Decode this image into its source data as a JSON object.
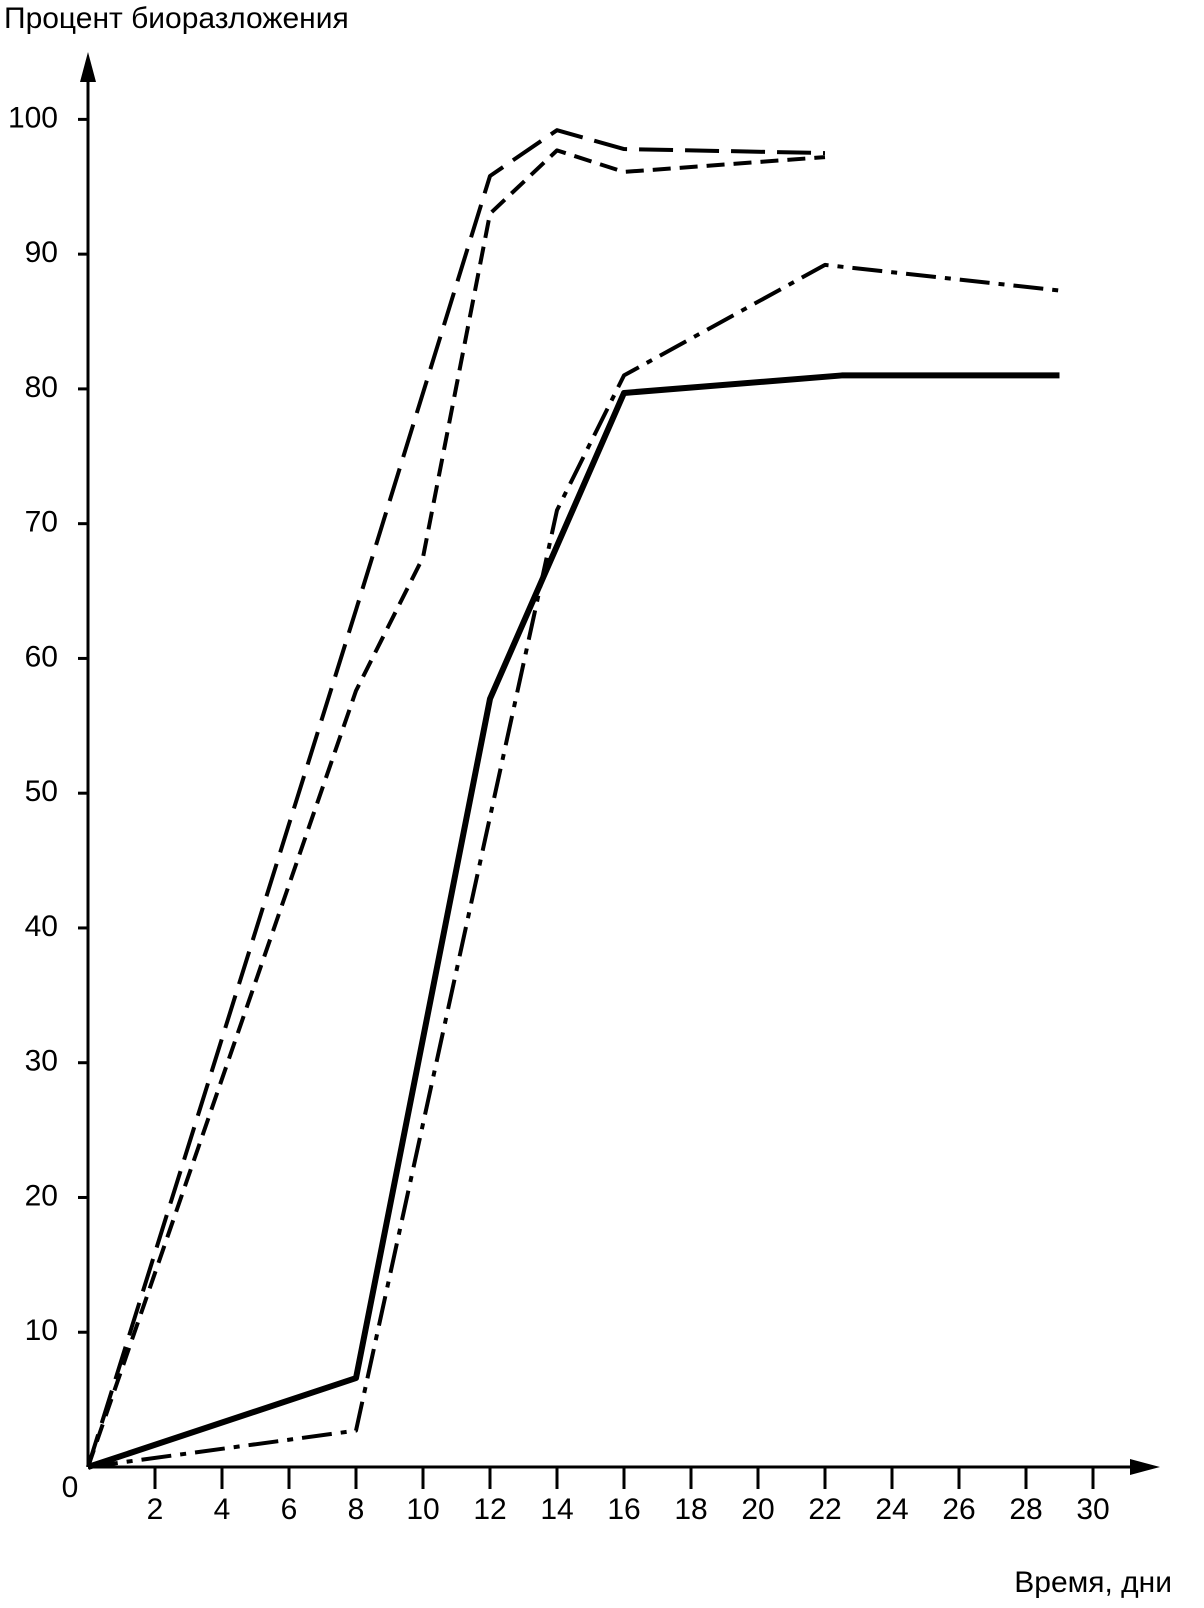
{
  "chart_data": {
    "type": "line",
    "ylabel": "Процент биоразложения",
    "xlabel": "Время, дни",
    "xlim": [
      0,
      32
    ],
    "ylim": [
      0,
      105
    ],
    "xticks": [
      2,
      4,
      6,
      8,
      10,
      12,
      14,
      16,
      18,
      20,
      22,
      24,
      26,
      28,
      30
    ],
    "yticks": [
      0,
      10,
      20,
      30,
      40,
      50,
      60,
      70,
      80,
      90,
      100
    ],
    "series": [
      {
        "color": "#000000",
        "line_style": "long-dash",
        "x": [
          0,
          8,
          12,
          14,
          16,
          22
        ],
        "values": [
          0,
          63.6,
          95.8,
          99.2,
          97.8,
          97.5
        ]
      },
      {
        "color": "#000000",
        "line_style": "short-dash",
        "x": [
          0,
          8,
          10,
          12,
          14,
          16,
          22
        ],
        "values": [
          0,
          57.6,
          67.5,
          93,
          97.7,
          96.1,
          97.2
        ]
      },
      {
        "color": "#000000",
        "line_style": "solid-thick",
        "x": [
          0,
          8,
          12,
          16,
          22.5,
          29
        ],
        "values": [
          0,
          6.6,
          57,
          79.7,
          81,
          81
        ]
      },
      {
        "color": "#000000",
        "line_style": "dash-dot",
        "x": [
          0,
          8,
          14,
          16,
          22,
          29
        ],
        "values": [
          0,
          2.7,
          71,
          81,
          89.2,
          87.3
        ]
      }
    ]
  }
}
